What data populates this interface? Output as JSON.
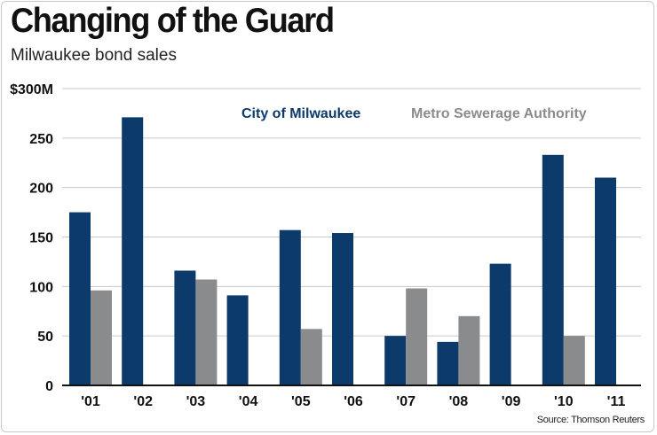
{
  "chart_data": {
    "type": "bar",
    "title": "Changing of the Guard",
    "subtitle": "Milwaukee bond sales",
    "source": "Source: Thomson Reuters",
    "categories": [
      "'01",
      "'02",
      "'03",
      "'04",
      "'05",
      "'06",
      "'07",
      "'08",
      "'09",
      "'10",
      "'11"
    ],
    "series": [
      {
        "name": "City of Milwaukee",
        "color": "#0b3a6b",
        "values": [
          175,
          271,
          116,
          91,
          157,
          154,
          50,
          44,
          123,
          233,
          210
        ]
      },
      {
        "name": "Metro Sewerage Authority",
        "color": "#8a8b8d",
        "values": [
          96,
          null,
          107,
          null,
          57,
          null,
          98,
          70,
          null,
          50,
          null
        ]
      }
    ],
    "ylim": [
      0,
      300
    ],
    "yticks": [
      {
        "value": 0,
        "label": "0"
      },
      {
        "value": 50,
        "label": "50"
      },
      {
        "value": 100,
        "label": "100"
      },
      {
        "value": 150,
        "label": "150"
      },
      {
        "value": 200,
        "label": "200"
      },
      {
        "value": 250,
        "label": "250"
      },
      {
        "value": 300,
        "label": "$300M"
      }
    ],
    "xlabel": "",
    "ylabel": "",
    "grid": true,
    "legend": "top-right"
  }
}
